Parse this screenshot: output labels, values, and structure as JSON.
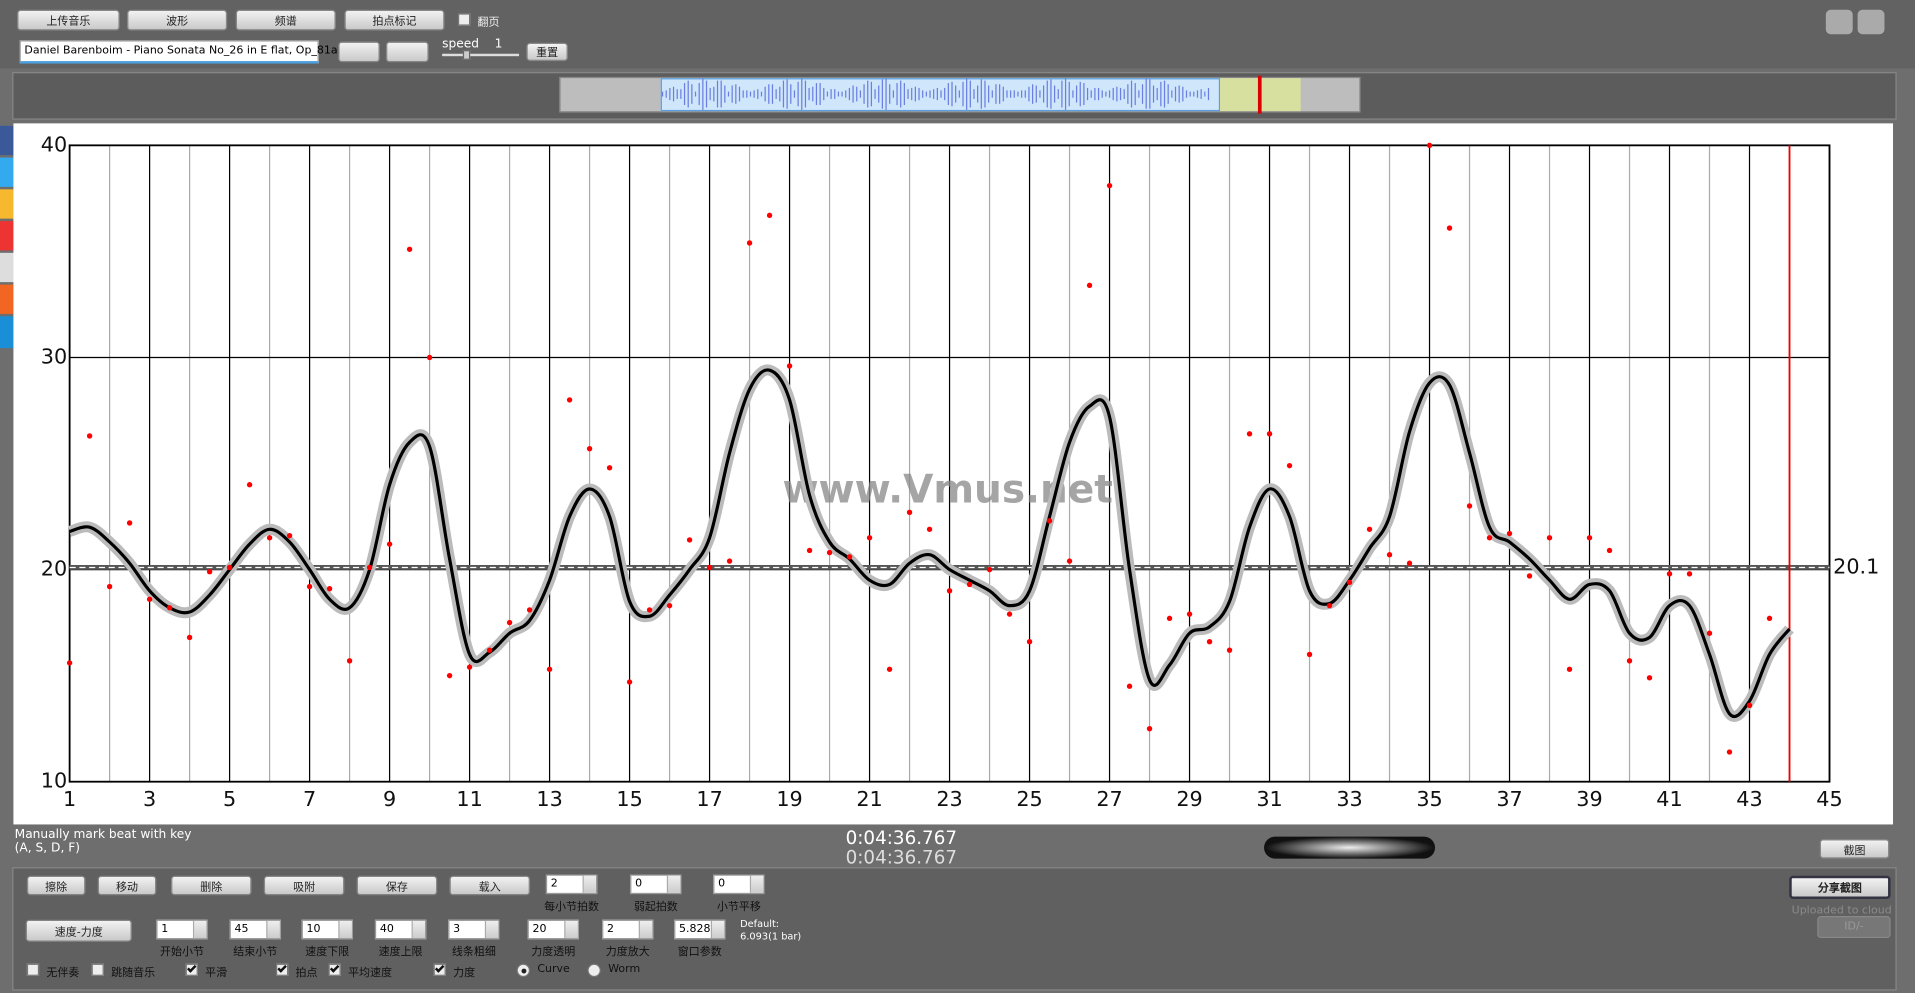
{
  "toolbar": {
    "buttons": [
      "上传音乐",
      "波形",
      "频谱",
      "拍点标记"
    ],
    "page_turn": {
      "label": "翻页",
      "checked": false
    },
    "track": "Daniel Barenboim - Piano Sonata No_26 in E flat, Op_81a -",
    "speed_label": "speed",
    "speed": 1,
    "reset": "重置"
  },
  "chart_data": {
    "type": "line",
    "xlim": [
      1,
      45
    ],
    "xticks": [
      1,
      3,
      5,
      7,
      9,
      11,
      13,
      15,
      17,
      19,
      21,
      23,
      25,
      27,
      29,
      31,
      33,
      35,
      37,
      39,
      41,
      43,
      45
    ],
    "minor_xticks": [
      2,
      4,
      6,
      8,
      10,
      12,
      14,
      16,
      18,
      20,
      22,
      24,
      26,
      28,
      30,
      32,
      34,
      36,
      38,
      40,
      42,
      44
    ],
    "ylim": [
      10,
      40
    ],
    "yticks": [
      10,
      20,
      30,
      40
    ],
    "grid": true,
    "mean": 20.1,
    "cursor": 44,
    "watermark": "www.Vmus.net",
    "series": [
      {
        "type": "line",
        "color": "#000000",
        "x": [
          1,
          1.5,
          2,
          2.5,
          3,
          3.5,
          4,
          4.5,
          5,
          5.5,
          6,
          6.5,
          7,
          7.5,
          8,
          8.5,
          9,
          9.5,
          10,
          10.5,
          11,
          11.5,
          12,
          12.5,
          13,
          13.5,
          14,
          14.5,
          15,
          15.5,
          16,
          16.5,
          17,
          17.5,
          18,
          18.5,
          19,
          19.5,
          20,
          20.5,
          21,
          21.5,
          22,
          22.5,
          23,
          23.5,
          24,
          24.5,
          25,
          25.5,
          26,
          26.5,
          27,
          27.5,
          28,
          28.5,
          29,
          29.5,
          30,
          30.5,
          31,
          31.5,
          32,
          32.5,
          33,
          33.5,
          34,
          34.5,
          35,
          35.5,
          36,
          36.5,
          37,
          37.5,
          38,
          38.5,
          39,
          39.5,
          40,
          40.5,
          41,
          41.5,
          42,
          42.5,
          43,
          43.5,
          44
        ],
        "values": [
          21.8,
          22.0,
          21.3,
          20.3,
          19.0,
          18.2,
          18.0,
          18.8,
          20.0,
          21.2,
          21.9,
          21.3,
          20.0,
          18.6,
          18.2,
          20.0,
          24.0,
          26.0,
          25.8,
          20.5,
          16.0,
          16.1,
          17.0,
          17.6,
          19.5,
          22.5,
          23.8,
          22.5,
          18.5,
          17.8,
          18.8,
          20.0,
          21.5,
          25.5,
          28.5,
          29.4,
          28.0,
          23.5,
          21.3,
          20.5,
          19.5,
          19.3,
          20.3,
          20.7,
          20.0,
          19.5,
          19.0,
          18.3,
          19.0,
          22.5,
          26.0,
          27.7,
          27.2,
          20.0,
          14.8,
          15.5,
          17.0,
          17.3,
          18.5,
          22.0,
          23.8,
          22.5,
          19.0,
          18.4,
          19.5,
          21.0,
          22.5,
          26.5,
          28.8,
          28.7,
          25.5,
          22.0,
          21.3,
          20.5,
          19.5,
          18.6,
          19.3,
          19.0,
          17.0,
          16.8,
          18.3,
          18.3,
          16.0,
          13.2,
          13.8,
          16.0,
          17.2
        ]
      },
      {
        "type": "scatter",
        "color": "#ff0000",
        "x": [
          1,
          1.5,
          2,
          2.5,
          3,
          3.5,
          4,
          4.5,
          5,
          5.5,
          6,
          6.5,
          7,
          7.5,
          8,
          8.5,
          9,
          9.5,
          10,
          10.5,
          11,
          11.5,
          12,
          12.5,
          13,
          13.5,
          14,
          14.5,
          15,
          15.5,
          16,
          16.5,
          17,
          17.5,
          18,
          18.5,
          19,
          19.5,
          20,
          20.5,
          21,
          21.5,
          22,
          22.5,
          23,
          23.5,
          24,
          24.5,
          25,
          25.5,
          26,
          26.5,
          27,
          27.5,
          28,
          28.5,
          29,
          29.5,
          30,
          30.5,
          31,
          31.5,
          32,
          32.5,
          33,
          33.5,
          34,
          34.5,
          35,
          35.5,
          36,
          36.5,
          37,
          37.5,
          38,
          38.5,
          39,
          39.5,
          40,
          40.5,
          41,
          41.5,
          42,
          42.5,
          43,
          43.5
        ],
        "values": [
          15.6,
          26.3,
          19.2,
          22.2,
          18.6,
          18.2,
          16.8,
          19.9,
          20.1,
          24.0,
          21.5,
          21.6,
          19.2,
          19.1,
          15.7,
          20.1,
          21.2,
          35.1,
          30.0,
          15.0,
          15.4,
          16.2,
          17.5,
          18.1,
          15.3,
          28.0,
          25.7,
          24.8,
          14.7,
          18.1,
          18.3,
          21.4,
          20.1,
          20.4,
          35.4,
          36.7,
          29.6,
          20.9,
          20.8,
          20.6,
          21.5,
          15.3,
          22.7,
          21.9,
          19.0,
          19.3,
          20.0,
          17.9,
          16.6,
          22.3,
          20.4,
          33.4,
          38.1,
          14.5,
          12.5,
          17.7,
          17.9,
          16.6,
          16.2,
          26.4,
          26.4,
          24.9,
          16.0,
          18.3,
          19.4,
          21.9,
          20.7,
          20.3,
          40.0,
          36.1,
          23.0,
          21.5,
          21.7,
          19.7,
          21.5,
          15.3,
          21.5,
          20.9,
          15.7,
          14.9,
          19.8,
          19.8,
          17.0,
          11.4,
          13.6,
          17.7
        ]
      }
    ]
  },
  "status": {
    "hint": "Manually mark beat with key",
    "keys": "(A, S, D, F)",
    "time1": "0:04:36.767",
    "time2": "0:04:36.767",
    "screenshot": "截图"
  },
  "controls": {
    "tools": [
      "擦除",
      "移动",
      "删除",
      "吸附",
      "保存",
      "载入"
    ],
    "fields1": [
      {
        "value": 2,
        "label": "每小节拍数"
      },
      {
        "value": 0,
        "label": "弱起拍数"
      },
      {
        "value": 0,
        "label": "小节平移"
      }
    ],
    "mode": "速度-力度",
    "fields2": [
      {
        "value": 1,
        "label": "开始小节"
      },
      {
        "value": 45,
        "label": "结束小节"
      },
      {
        "value": 10,
        "label": "速度下限"
      },
      {
        "value": 40,
        "label": "速度上限"
      },
      {
        "value": 3,
        "label": "线条粗细"
      },
      {
        "value": 20,
        "label": "力度透明"
      },
      {
        "value": 2,
        "label": "力度放大"
      },
      {
        "value": 5.8282,
        "label": "窗口参数"
      }
    ],
    "default_note": "Default:",
    "default_value": "6.093(1 bar)",
    "checks": [
      {
        "label": "无伴奏",
        "checked": false
      },
      {
        "label": "跳随音乐",
        "checked": false
      },
      {
        "label": "平滑",
        "checked": true
      },
      {
        "label": "拍点",
        "checked": true
      },
      {
        "label": "平均速度",
        "checked": true
      },
      {
        "label": "力度",
        "checked": true
      }
    ],
    "radios": [
      {
        "label": "Curve",
        "checked": true
      },
      {
        "label": "Worm",
        "checked": false
      }
    ],
    "share": "分享截图",
    "uploaded": "Uploaded to cloud",
    "id": "ID/-"
  }
}
